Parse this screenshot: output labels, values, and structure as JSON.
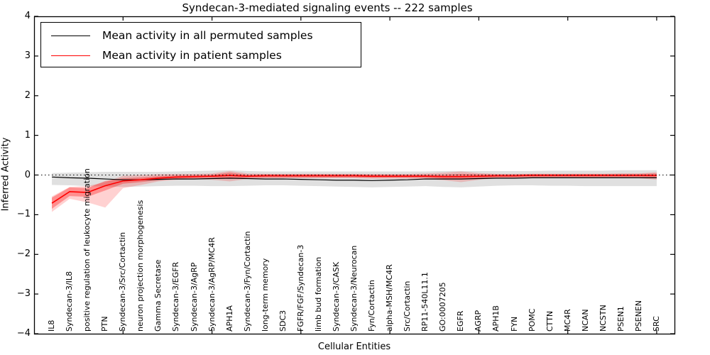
{
  "title": "Syndecan-3-mediated signaling events -- 222 samples",
  "axes": {
    "xlabel": "Cellular Entities",
    "ylabel": "Inferred Activity",
    "ytick_labels": [
      "4",
      "3",
      "2",
      "1",
      "0",
      "−1",
      "−2",
      "−3",
      "−4"
    ]
  },
  "legend": {
    "entries": [
      {
        "label": "Mean activity in all permuted samples",
        "color": "#000000"
      },
      {
        "label": "Mean activity in patient samples",
        "color": "#ff0000"
      }
    ]
  },
  "colors": {
    "frame": "#000000",
    "zero_line": "#000000",
    "gray_band": "rgba(0,0,0,0.12)",
    "red_band_outer": "rgba(255,0,0,0.18)",
    "red_band_inner": "rgba(255,0,0,0.32)"
  },
  "chart_data": {
    "type": "line",
    "title": "Syndecan-3-mediated signaling events -- 222 samples",
    "xlabel": "Cellular Entities",
    "ylabel": "Inferred Activity",
    "ylim": [
      -4,
      4
    ],
    "yticks": [
      4,
      3,
      2,
      1,
      0,
      -1,
      -2,
      -3,
      -4
    ],
    "grid": false,
    "legend_position": "upper left",
    "zero_reference_line": "dotted at y=0",
    "categories": [
      "IL8",
      "Syndecan-3/IL8",
      "positive regulation of leukocyte migration",
      "PTN",
      "Syndecan-3/Src/Cortactin",
      "neuron projection morphogenesis",
      "Gamma Secretase",
      "Syndecan-3/EGFR",
      "Syndecan-3/AgRP",
      "Syndecan-3/AgRP/MC4R",
      "APH1A",
      "Syndecan-3/Fyn/Cortactin",
      "long-term memory",
      "SDC3",
      "FGFR/FGF/Syndecan-3",
      "limb bud formation",
      "Syndecan-3/CASK",
      "Syndecan-3/Neurocan",
      "Fyn/Cortactin",
      "alpha-MSH/MC4R",
      "Src/Cortactin",
      "RP11-540L11.1",
      "GO:0007205",
      "EGFR",
      "AGRP",
      "APH1B",
      "FYN",
      "POMC",
      "CTTN",
      "MC4R",
      "NCAN",
      "NCSTN",
      "PSEN1",
      "PSENEN",
      "SRC"
    ],
    "series": [
      {
        "name": "Mean activity in all permuted samples",
        "color": "#000000",
        "values": [
          -0.05,
          -0.07,
          -0.08,
          -0.1,
          -0.12,
          -0.12,
          -0.11,
          -0.1,
          -0.1,
          -0.09,
          -0.08,
          -0.09,
          -0.1,
          -0.1,
          -0.11,
          -0.12,
          -0.13,
          -0.13,
          -0.14,
          -0.13,
          -0.12,
          -0.1,
          -0.1,
          -0.1,
          -0.09,
          -0.08,
          -0.08,
          -0.07,
          -0.07,
          -0.07,
          -0.07,
          -0.07,
          -0.07,
          -0.07,
          -0.07
        ],
        "band_low": [
          -0.25,
          -0.26,
          -0.28,
          -0.29,
          -0.3,
          -0.29,
          -0.28,
          -0.27,
          -0.27,
          -0.28,
          -0.28,
          -0.27,
          -0.26,
          -0.26,
          -0.27,
          -0.28,
          -0.29,
          -0.3,
          -0.31,
          -0.3,
          -0.29,
          -0.28,
          -0.3,
          -0.31,
          -0.29,
          -0.27,
          -0.26,
          -0.26,
          -0.27,
          -0.27,
          -0.28,
          -0.28,
          -0.28,
          -0.28,
          -0.28
        ],
        "band_high": [
          0.05,
          0.06,
          0.07,
          0.08,
          0.08,
          0.08,
          0.08,
          0.09,
          0.1,
          0.11,
          0.12,
          0.1,
          0.09,
          0.09,
          0.09,
          0.09,
          0.09,
          0.09,
          0.09,
          0.09,
          0.09,
          0.09,
          0.1,
          0.1,
          0.1,
          0.1,
          0.1,
          0.1,
          0.11,
          0.11,
          0.11,
          0.11,
          0.12,
          0.12,
          0.12
        ]
      },
      {
        "name": "Mean activity in patient samples",
        "color": "#ff0000",
        "values": [
          -0.71,
          -0.42,
          -0.44,
          -0.27,
          -0.15,
          -0.12,
          -0.08,
          -0.05,
          -0.04,
          -0.03,
          -0.01,
          -0.03,
          -0.02,
          -0.02,
          -0.02,
          -0.02,
          -0.02,
          -0.02,
          -0.03,
          -0.03,
          -0.03,
          -0.03,
          -0.04,
          -0.04,
          -0.03,
          -0.02,
          -0.02,
          -0.01,
          -0.01,
          -0.01,
          -0.01,
          -0.01,
          -0.01,
          -0.01,
          -0.01
        ],
        "band_outer_low": [
          -0.93,
          -0.6,
          -0.69,
          -0.82,
          -0.33,
          -0.25,
          -0.16,
          -0.12,
          -0.1,
          -0.12,
          -0.16,
          -0.1,
          -0.08,
          -0.08,
          -0.08,
          -0.08,
          -0.08,
          -0.08,
          -0.09,
          -0.09,
          -0.09,
          -0.1,
          -0.13,
          -0.18,
          -0.12,
          -0.08,
          -0.08,
          -0.07,
          -0.07,
          -0.07,
          -0.07,
          -0.07,
          -0.07,
          -0.08,
          -0.12
        ],
        "band_outer_high": [
          -0.54,
          -0.3,
          -0.28,
          -0.18,
          -0.02,
          0.0,
          0.02,
          0.03,
          0.03,
          0.04,
          0.1,
          0.04,
          0.03,
          0.03,
          0.03,
          0.03,
          0.03,
          0.03,
          0.03,
          0.03,
          0.03,
          0.04,
          0.06,
          0.09,
          0.05,
          0.03,
          0.03,
          0.03,
          0.03,
          0.03,
          0.03,
          0.03,
          0.04,
          0.04,
          0.07
        ],
        "band_inner_low": [
          -0.85,
          -0.53,
          -0.55,
          -0.39,
          -0.22,
          -0.18,
          -0.13,
          -0.09,
          -0.08,
          -0.07,
          -0.08,
          -0.07,
          -0.06,
          -0.06,
          -0.06,
          -0.06,
          -0.06,
          -0.06,
          -0.07,
          -0.07,
          -0.07,
          -0.07,
          -0.09,
          -0.11,
          -0.08,
          -0.06,
          -0.06,
          -0.05,
          -0.05,
          -0.05,
          -0.05,
          -0.05,
          -0.05,
          -0.05,
          -0.06
        ],
        "band_inner_high": [
          -0.57,
          -0.31,
          -0.33,
          -0.15,
          -0.08,
          -0.06,
          -0.03,
          -0.01,
          0.0,
          0.01,
          0.06,
          0.01,
          0.02,
          0.02,
          0.02,
          0.02,
          0.02,
          0.02,
          0.01,
          0.01,
          0.01,
          0.01,
          0.01,
          0.03,
          0.02,
          0.02,
          0.02,
          0.03,
          0.03,
          0.03,
          0.03,
          0.03,
          0.03,
          0.03,
          0.04
        ]
      }
    ]
  }
}
